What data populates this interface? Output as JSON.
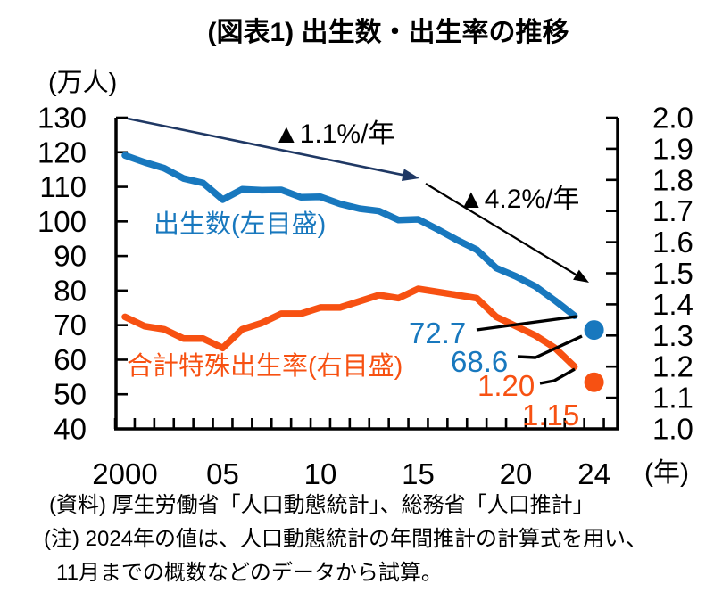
{
  "footer": {
    "source": "(資料) 厚生労働省「人口動態統計」、総務省「人口推計」",
    "note_line1": "(注) 2024年の値は、人口動態統計の年間推計の計算式を用い、",
    "note_line2": "11月までの概数などのデータから試算。"
  },
  "chart_data": {
    "type": "line",
    "title": "(図表1) 出生数・出生率の推移",
    "years": [
      2000,
      2001,
      2002,
      2003,
      2004,
      2005,
      2006,
      2007,
      2008,
      2009,
      2010,
      2011,
      2012,
      2013,
      2014,
      2015,
      2016,
      2017,
      2018,
      2019,
      2020,
      2021,
      2022,
      2023,
      2024
    ],
    "x_tick_labels": [
      {
        "year": 2000,
        "label": "2000"
      },
      {
        "year": 2005,
        "label": "05"
      },
      {
        "year": 2010,
        "label": "10"
      },
      {
        "year": 2015,
        "label": "15"
      },
      {
        "year": 2020,
        "label": "20"
      },
      {
        "year": 2024,
        "label": "24"
      }
    ],
    "x_unit": "(年)",
    "y_left": {
      "unit": "(万人)",
      "min": 40,
      "max": 130,
      "step": 10,
      "tick_labels": [
        "130",
        "120",
        "110",
        "100",
        "90",
        "80",
        "70",
        "60",
        "50",
        "40"
      ]
    },
    "y_right": {
      "min": 1.0,
      "max": 2.0,
      "step": 0.1,
      "tick_labels": [
        "2.0",
        "1.9",
        "1.8",
        "1.7",
        "1.6",
        "1.5",
        "1.4",
        "1.3",
        "1.2",
        "1.1",
        "1.0"
      ]
    },
    "grid": "off",
    "axis_color": "#000000",
    "series": [
      {
        "name": "出生数(左目盛)",
        "axis": "left",
        "color": "#1878BE",
        "line_until": 2023,
        "values": [
          119.1,
          117.1,
          115.4,
          112.4,
          111.1,
          106.3,
          109.3,
          109.0,
          109.1,
          107.0,
          107.1,
          105.1,
          103.7,
          103.0,
          100.4,
          100.6,
          97.7,
          94.6,
          91.8,
          86.5,
          84.1,
          81.2,
          77.1,
          72.7,
          68.6
        ],
        "point_2024_style": "dot"
      },
      {
        "name": "合計特殊出生率(右目盛)",
        "axis": "right",
        "color": "#F75112",
        "line_until": 2023,
        "values": [
          1.36,
          1.33,
          1.32,
          1.29,
          1.29,
          1.26,
          1.32,
          1.34,
          1.37,
          1.37,
          1.39,
          1.39,
          1.41,
          1.43,
          1.42,
          1.45,
          1.44,
          1.43,
          1.42,
          1.36,
          1.33,
          1.3,
          1.26,
          1.2,
          1.15
        ],
        "point_2024_style": "dot"
      }
    ],
    "annotations": {
      "trend1": "▲1.1%/年",
      "trend2": "▲4.2%/年",
      "arrow1_color": "#1F3864",
      "arrow2_color": "#000000"
    },
    "callouts": {
      "births_2023": "72.7",
      "births_2024": "68.6",
      "tfr_2023": "1.20",
      "tfr_2024": "1.15"
    }
  }
}
